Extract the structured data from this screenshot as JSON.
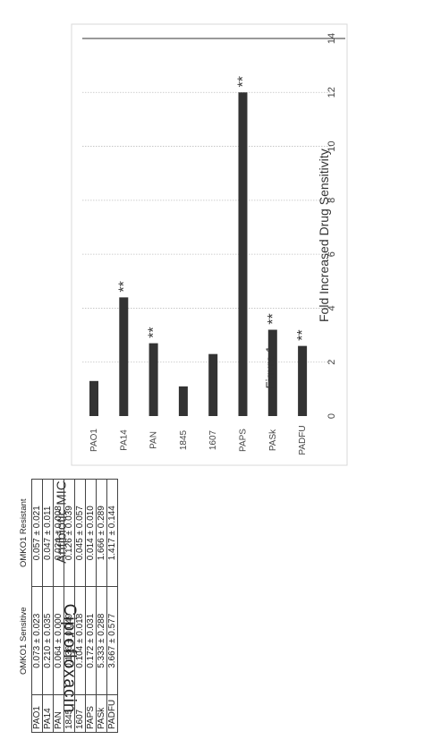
{
  "figure_caption": "Figure 1",
  "side_label": "Ciprofloxacin",
  "table": {
    "title": "Antibiotic MIC",
    "columns": [
      "",
      "OMKO1 Sensitive",
      "OMKO1 Resistant"
    ],
    "rows": [
      {
        "strain": "PAO1",
        "sensitive": "0.073 ± 0.023",
        "resistant": "0.057 ± 0.021"
      },
      {
        "strain": "PA14",
        "sensitive": "0.210 ± 0.035",
        "resistant": "0.047 ± 0.011"
      },
      {
        "strain": "PAN",
        "sensitive": "0.064 ± 0.000",
        "resistant": "0.024 ± 0.008"
      },
      {
        "strain": "1845",
        "sensitive": "0.136 ± 0.049",
        "resistant": "0.126 ± 0.039"
      },
      {
        "strain": "1607",
        "sensitive": "0.104 ± 0.018",
        "resistant": "0.045 ± 0.057"
      },
      {
        "strain": "PAPS",
        "sensitive": "0.172 ± 0.031",
        "resistant": "0.014 ± 0.010"
      },
      {
        "strain": "PASk",
        "sensitive": "5.333 ± 0.288",
        "resistant": "1.666 ± 0.289"
      },
      {
        "strain": "PADFU",
        "sensitive": "3.667 ± 0.577",
        "resistant": "1.417 ± 0.144"
      }
    ]
  },
  "chart_data": {
    "type": "bar",
    "orientation": "horizontal",
    "title": "Fold Increased Drug Sensitivity",
    "categories": [
      "PAO1",
      "PA14",
      "PAN",
      "1845",
      "1607",
      "PAPS",
      "PASk",
      "PADFU"
    ],
    "values": [
      1.3,
      4.4,
      2.7,
      1.1,
      2.3,
      12.0,
      3.2,
      2.6
    ],
    "significance": [
      "",
      "**",
      "**",
      "",
      "",
      "**",
      "**",
      "**"
    ],
    "xlim": [
      0,
      14
    ],
    "xticks": [
      0,
      2,
      4,
      6,
      8,
      10,
      12,
      14
    ],
    "grid": true,
    "bar_color": "#333333",
    "reference_line": 14
  }
}
